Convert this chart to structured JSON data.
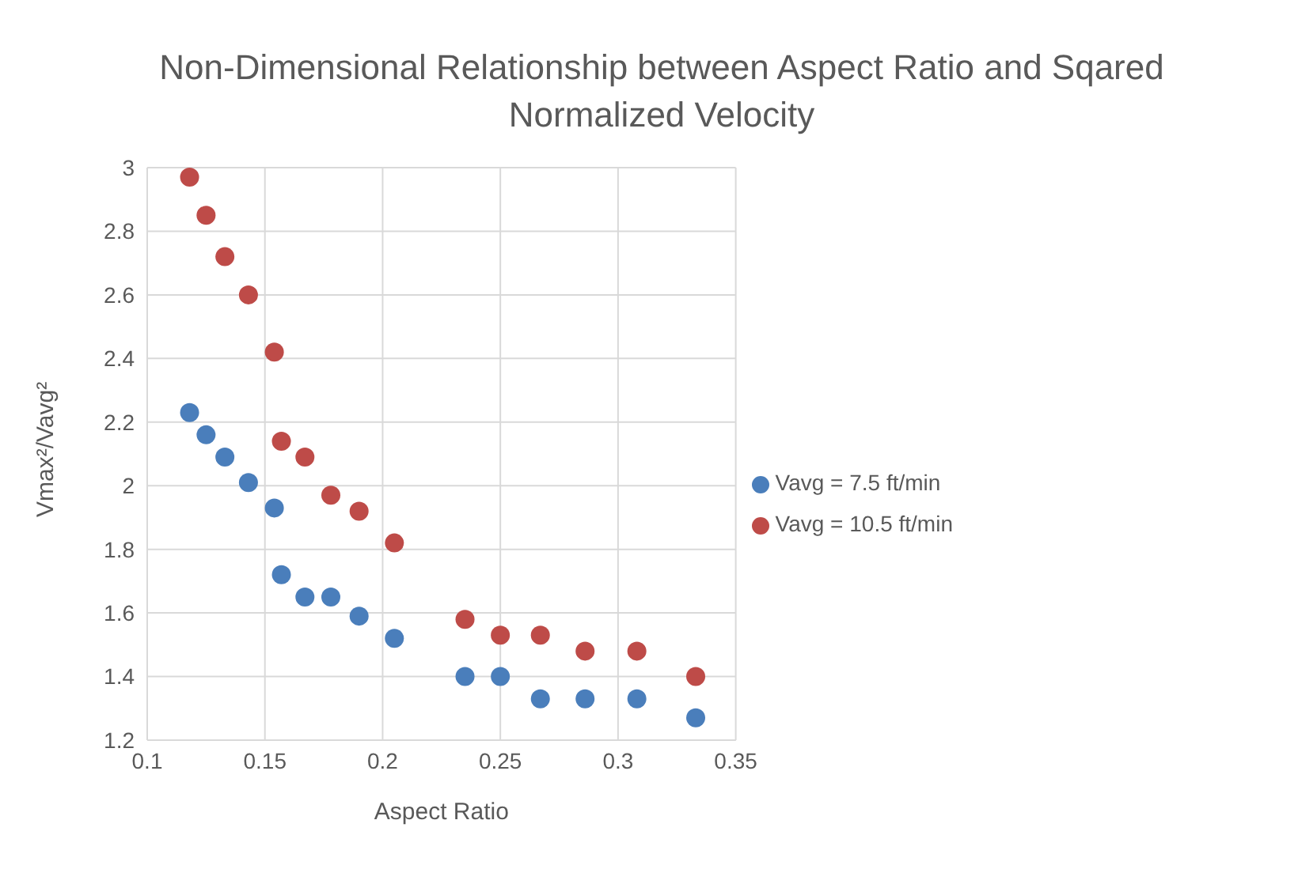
{
  "chart_data": {
    "type": "scatter",
    "title": "Non-Dimensional Relationship between Aspect Ratio and Sqared Normalized Velocity",
    "xlabel": "Aspect Ratio",
    "ylabel": "Vmax²/Vavg²",
    "x": [
      0.118,
      0.125,
      0.133,
      0.143,
      0.154,
      0.157,
      0.167,
      0.178,
      0.19,
      0.205,
      0.235,
      0.25,
      0.267,
      0.286,
      0.308,
      0.333
    ],
    "series": [
      {
        "name": "Vavg = 7.5 ft/min",
        "color": "#4a7ebb",
        "values": [
          2.23,
          2.16,
          2.09,
          2.01,
          1.93,
          1.72,
          1.65,
          1.65,
          1.59,
          1.52,
          1.4,
          1.4,
          1.33,
          1.33,
          1.33,
          1.27
        ]
      },
      {
        "name": "Vavg = 10.5 ft/min",
        "color": "#be4b48",
        "values": [
          2.97,
          2.85,
          2.72,
          2.6,
          2.42,
          2.14,
          2.09,
          1.97,
          1.92,
          1.82,
          1.58,
          1.53,
          1.53,
          1.48,
          1.48,
          1.4
        ]
      }
    ],
    "xlim": [
      0.1,
      0.35
    ],
    "xticks": [
      0.1,
      0.15,
      0.2,
      0.25,
      0.3,
      0.35
    ],
    "ylim": [
      1.2,
      3
    ],
    "yticks": [
      1.2,
      1.4,
      1.6,
      1.8,
      2,
      2.2,
      2.4,
      2.6,
      2.8,
      3
    ],
    "grid": true,
    "legend": "right",
    "marker": "circle"
  }
}
